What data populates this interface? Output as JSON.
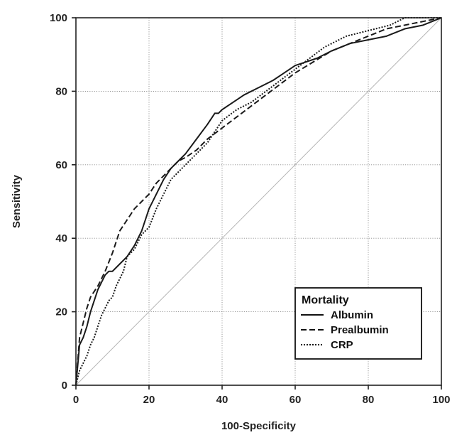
{
  "chart_data": {
    "type": "line",
    "xlabel": "100-Specificity",
    "ylabel": "Sensitivity",
    "xlim": [
      0,
      100
    ],
    "ylim": [
      0,
      100
    ],
    "xticks": [
      0,
      20,
      40,
      60,
      80,
      100
    ],
    "yticks": [
      0,
      20,
      40,
      60,
      80,
      100
    ],
    "grid": true,
    "legend": {
      "title": "Mortality",
      "placement": "bottom-right"
    },
    "reference_line": {
      "x": [
        0,
        100
      ],
      "y": [
        0,
        100
      ]
    },
    "series": [
      {
        "name": "Albumin",
        "style": "solid",
        "x": [
          0,
          1,
          2,
          3,
          4,
          5,
          6,
          7,
          8,
          9,
          10,
          12,
          14,
          16,
          17,
          18,
          20,
          22,
          24,
          26,
          28,
          30,
          33,
          36,
          38,
          39,
          40,
          43,
          46,
          50,
          54,
          57,
          60,
          63,
          66,
          70,
          75,
          80,
          85,
          90,
          95,
          100
        ],
        "y": [
          0,
          11,
          13,
          16,
          20,
          23,
          26,
          28,
          30,
          31,
          31,
          33,
          35,
          38,
          40,
          42,
          48,
          52,
          56,
          59,
          61,
          63,
          67,
          71,
          74,
          74,
          75,
          77,
          79,
          81,
          83,
          85,
          87,
          88,
          89,
          91,
          93,
          94,
          95,
          97,
          98,
          100
        ]
      },
      {
        "name": "Prealbumin",
        "style": "dashed",
        "x": [
          0,
          1,
          2,
          3,
          4,
          6,
          8,
          10,
          12,
          14,
          16,
          18,
          20,
          22,
          24,
          26,
          28,
          30,
          33,
          36,
          40,
          44,
          48,
          52,
          56,
          60,
          65,
          70,
          75,
          80,
          85,
          90,
          95,
          100
        ],
        "y": [
          0,
          13,
          17,
          21,
          24,
          27,
          31,
          36,
          42,
          45,
          48,
          50,
          52,
          55,
          57,
          59,
          61,
          62,
          64,
          67,
          70,
          73,
          76,
          79,
          82,
          85,
          88,
          91,
          93,
          95,
          97,
          98,
          99,
          100
        ]
      },
      {
        "name": "CRP",
        "style": "dotted",
        "x": [
          0,
          1,
          2,
          3,
          4,
          5,
          6,
          7,
          8,
          9,
          10,
          11,
          12,
          13,
          14,
          16,
          18,
          20,
          22,
          24,
          26,
          28,
          30,
          33,
          36,
          38,
          40,
          44,
          48,
          52,
          56,
          60,
          64,
          68,
          70,
          74,
          78,
          82,
          86,
          88,
          90,
          95,
          100
        ],
        "y": [
          0,
          4,
          6,
          8,
          11,
          13,
          16,
          19,
          21,
          23,
          24,
          27,
          29,
          31,
          35,
          37,
          41,
          43,
          48,
          52,
          56,
          58,
          60,
          63,
          66,
          69,
          72,
          75,
          77,
          80,
          83,
          86,
          89,
          92,
          93,
          95,
          96,
          97,
          98,
          99,
          100,
          100,
          100
        ]
      }
    ]
  }
}
